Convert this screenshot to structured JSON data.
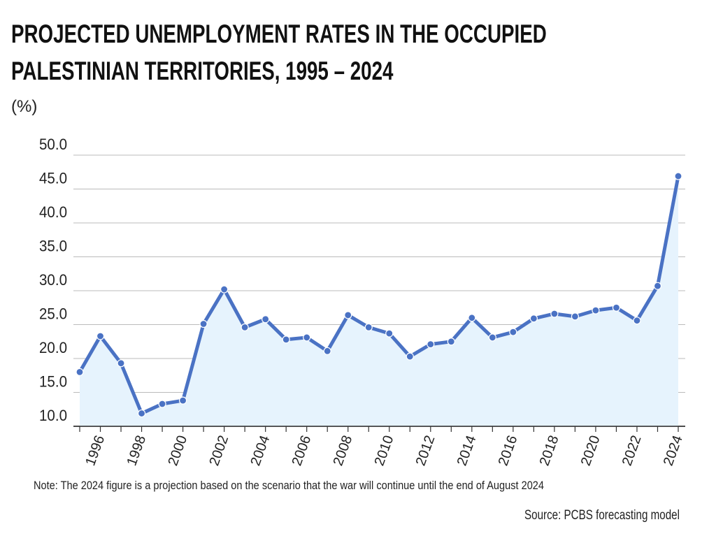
{
  "chart_data": {
    "type": "line",
    "title": "PROJECTED UNEMPLOYMENT RATES IN THE OCCUPIED PALESTINIAN TERRITORIES, 1995 – 2024",
    "y_label": "(%)",
    "categories": [
      null,
      "1996",
      null,
      "1998",
      null,
      "2000",
      null,
      "2002",
      null,
      "2004",
      null,
      "2006",
      null,
      "2008",
      null,
      "2010",
      null,
      "2012",
      null,
      "2014",
      null,
      "2016",
      null,
      "2018",
      null,
      "2020",
      null,
      "2022",
      null,
      "2024"
    ],
    "series": [
      {
        "name": "Unemployment rate",
        "color": "#4a72c4",
        "area_color": "#e6f3fd",
        "values": [
          18.0,
          23.3,
          19.3,
          11.9,
          13.3,
          13.8,
          25.1,
          30.2,
          24.6,
          25.8,
          22.8,
          23.1,
          21.1,
          26.4,
          24.6,
          23.7,
          20.3,
          22.1,
          22.5,
          26.0,
          23.1,
          23.9,
          25.9,
          26.6,
          26.2,
          27.1,
          27.5,
          25.6,
          30.7,
          46.9
        ]
      }
    ],
    "ylim": [
      10,
      50
    ],
    "yticks": [
      {
        "value": 10,
        "label": "10.0"
      },
      {
        "value": 15,
        "label": "15.0"
      },
      {
        "value": 20,
        "label": "20.0"
      },
      {
        "value": 25,
        "label": "25.0"
      },
      {
        "value": 30,
        "label": "30.0"
      },
      {
        "value": 35,
        "label": "35.0"
      },
      {
        "value": 40,
        "label": "40.0"
      },
      {
        "value": 45,
        "label": "45.0"
      },
      {
        "value": 50,
        "label": "50.0"
      }
    ],
    "grid": true,
    "note": "Note: The 2024 figure is a projection based on the scenario that the war will continue until the end of August 2024",
    "source": "Source: PCBS forecasting model"
  }
}
